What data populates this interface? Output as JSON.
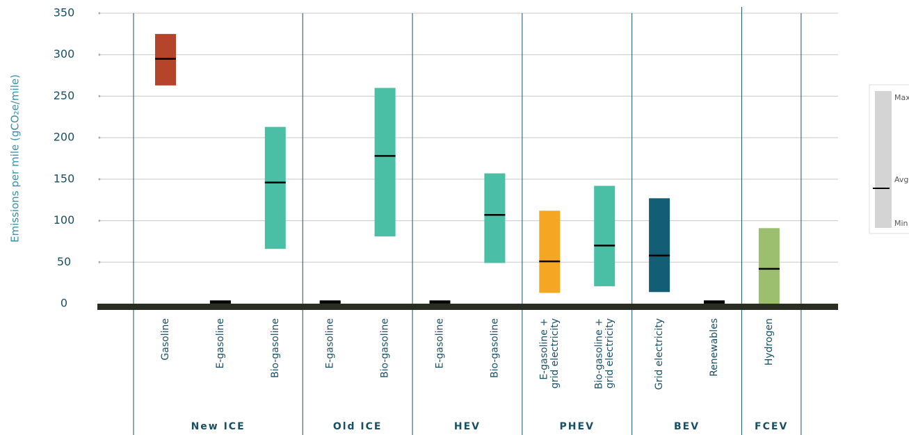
{
  "chart_data": {
    "type": "range",
    "y_label": "Emissions per mile (gCO₂e/mile)",
    "ylim": [
      0,
      350
    ],
    "yticks": [
      0,
      50,
      100,
      150,
      200,
      250,
      300,
      350
    ],
    "grid": true,
    "categories": [
      "Gasoline",
      "E-gasoline",
      "Bio-gasoline",
      "E-gasoline",
      "Bio-gasoline",
      "E-gasoline",
      "Bio-gasoline",
      "E-gasoline +\ngrid electricity",
      "Bio-gasoline +\ngrid electricity",
      "Grid electricity",
      "Renewables",
      "Hydrogen"
    ],
    "groups": [
      {
        "name": "New ICE",
        "count": 3
      },
      {
        "name": "Old ICE",
        "count": 2
      },
      {
        "name": "HEV",
        "count": 2
      },
      {
        "name": "PHEV",
        "count": 2
      },
      {
        "name": "BEV",
        "count": 2
      },
      {
        "name": "FCEV",
        "count": 1
      }
    ],
    "min": [
      263,
      0,
      66,
      0,
      81,
      0,
      49,
      13,
      21,
      14,
      0,
      0
    ],
    "max": [
      325,
      4,
      213,
      4,
      260,
      4,
      157,
      112,
      142,
      127,
      4,
      91
    ],
    "avg": [
      295,
      2,
      146,
      2,
      178,
      2,
      107,
      51,
      70,
      58,
      2,
      42
    ],
    "colors": [
      "#b5452a",
      "#111111",
      "#4bbfa6",
      "#111111",
      "#4bbfa6",
      "#111111",
      "#4bbfa6",
      "#f5a623",
      "#4bbfa6",
      "#135e75",
      "#111111",
      "#9bbf6e"
    ],
    "legend": {
      "max": "Max",
      "avg": "Avg",
      "min": "Min"
    }
  }
}
